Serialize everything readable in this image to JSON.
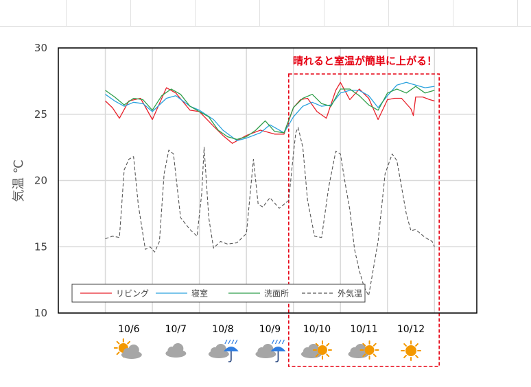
{
  "chart_data": {
    "type": "line",
    "title": "",
    "annotation": "晴れると室温が簡単に上がる！",
    "ylabel": "気温 ℃",
    "xlabel": "",
    "ylim": [
      10,
      30
    ],
    "yticks": [
      "10",
      "15",
      "20",
      "25",
      "30"
    ],
    "x_unit": "day index (0 = 10/6 00:00)",
    "xlim": [
      -1.0,
      7.9
    ],
    "grid": true,
    "legend_position": "bottom-left",
    "days": [
      "10/6",
      "10/7",
      "10/8",
      "10/9",
      "10/10",
      "10/11",
      "10/12"
    ],
    "weather": [
      "晴れ時々くもり",
      "くもり",
      "くもり時々雨",
      "くもり時々雨",
      "くもり時々晴れ",
      "くもり時々晴れ",
      "晴れ"
    ],
    "highlight_range": [
      3.9,
      7.1
    ],
    "series": [
      {
        "name": "リビング",
        "color": "#e8202a",
        "dash": "solid",
        "x": [
          0.0,
          0.15,
          0.3,
          0.5,
          0.75,
          1.0,
          1.3,
          1.5,
          1.8,
          2.0,
          2.3,
          2.5,
          2.7,
          3.0,
          3.3,
          3.6,
          3.8,
          4.0,
          4.15,
          4.3,
          4.5,
          4.7,
          4.9,
          5.0,
          5.2,
          5.4,
          5.6,
          5.8,
          6.0,
          6.15,
          6.3,
          6.5,
          6.55,
          6.6,
          6.75,
          6.9,
          7.0
        ],
        "values": [
          26.0,
          25.5,
          24.7,
          26.0,
          26.2,
          24.6,
          27.0,
          26.6,
          25.3,
          25.2,
          24.1,
          23.4,
          22.8,
          23.4,
          23.8,
          23.5,
          23.5,
          25.5,
          26.1,
          26.2,
          25.2,
          24.7,
          26.8,
          27.4,
          26.1,
          26.9,
          26.2,
          24.6,
          26.1,
          26.2,
          26.2,
          25.4,
          24.9,
          26.3,
          26.3,
          26.1,
          26.0
        ]
      },
      {
        "name": "寝室",
        "color": "#2aa2de",
        "dash": "solid",
        "x": [
          0.0,
          0.2,
          0.4,
          0.6,
          0.8,
          1.0,
          1.3,
          1.5,
          1.8,
          2.0,
          2.3,
          2.5,
          2.8,
          3.0,
          3.3,
          3.5,
          3.8,
          4.0,
          4.2,
          4.4,
          4.6,
          4.8,
          5.0,
          5.2,
          5.4,
          5.6,
          5.8,
          6.0,
          6.2,
          6.4,
          6.6,
          6.8,
          7.0
        ],
        "values": [
          26.5,
          26.0,
          25.6,
          25.9,
          25.8,
          25.2,
          26.2,
          26.4,
          25.6,
          25.3,
          24.6,
          23.8,
          23.0,
          23.2,
          23.6,
          24.2,
          23.6,
          24.8,
          25.6,
          25.9,
          25.6,
          25.7,
          26.6,
          26.8,
          26.8,
          26.4,
          25.5,
          26.4,
          27.2,
          27.4,
          27.2,
          27.0,
          27.1
        ]
      },
      {
        "name": "洗面所",
        "color": "#2f9e4a",
        "dash": "solid",
        "x": [
          0.0,
          0.2,
          0.4,
          0.6,
          0.8,
          1.0,
          1.2,
          1.4,
          1.6,
          1.8,
          2.0,
          2.2,
          2.4,
          2.6,
          2.8,
          3.0,
          3.2,
          3.4,
          3.6,
          3.8,
          4.0,
          4.2,
          4.4,
          4.6,
          4.8,
          5.0,
          5.2,
          5.4,
          5.6,
          5.8,
          6.0,
          6.2,
          6.4,
          6.6,
          6.8,
          7.0
        ],
        "values": [
          26.8,
          26.3,
          25.7,
          26.2,
          26.1,
          25.3,
          26.4,
          26.9,
          26.5,
          25.6,
          25.2,
          24.8,
          23.8,
          23.3,
          23.1,
          23.3,
          23.8,
          24.5,
          23.7,
          23.6,
          25.5,
          26.2,
          26.5,
          25.8,
          25.6,
          26.9,
          26.9,
          26.4,
          25.7,
          25.3,
          26.6,
          26.9,
          26.6,
          27.1,
          26.6,
          26.8
        ]
      },
      {
        "name": "外気温",
        "color": "#555555",
        "dash": "dashed",
        "x": [
          0.0,
          0.15,
          0.3,
          0.4,
          0.5,
          0.6,
          0.7,
          0.85,
          0.95,
          1.05,
          1.15,
          1.25,
          1.35,
          1.45,
          1.6,
          1.8,
          1.95,
          2.05,
          2.1,
          2.2,
          2.3,
          2.45,
          2.6,
          2.8,
          3.0,
          3.15,
          3.25,
          3.35,
          3.5,
          3.7,
          3.9,
          4.0,
          4.05,
          4.1,
          4.2,
          4.3,
          4.45,
          4.6,
          4.75,
          4.9,
          5.0,
          5.1,
          5.2,
          5.3,
          5.4,
          5.5,
          5.6,
          5.8,
          5.95,
          6.1,
          6.2,
          6.4,
          6.5,
          6.6,
          6.8,
          6.95,
          7.0
        ],
        "values": [
          15.6,
          15.8,
          15.7,
          20.8,
          21.6,
          21.8,
          18.2,
          14.8,
          15.0,
          14.6,
          15.4,
          20.5,
          22.3,
          22.0,
          17.2,
          16.3,
          15.8,
          19.0,
          22.5,
          17.2,
          14.9,
          15.4,
          15.2,
          15.3,
          16.0,
          21.6,
          18.2,
          18.0,
          18.7,
          17.9,
          18.5,
          22.0,
          23.6,
          24.0,
          22.5,
          18.5,
          15.8,
          15.7,
          19.5,
          22.2,
          22.0,
          19.8,
          17.8,
          14.8,
          13.2,
          12.0,
          11.3,
          15.4,
          20.5,
          22.0,
          21.5,
          17.5,
          16.2,
          16.3,
          15.7,
          15.4,
          15.0
        ]
      }
    ]
  },
  "legend": {
    "items": [
      "リビング",
      "寝室",
      "洗面所",
      "外気温"
    ]
  }
}
